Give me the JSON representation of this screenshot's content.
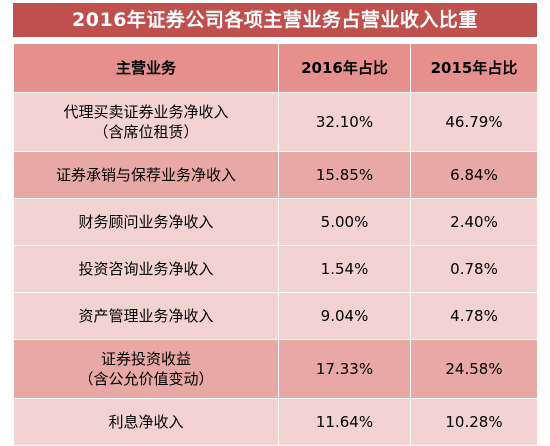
{
  "chart_data": {
    "type": "table",
    "title": "2016年证券公司各项主营业务占营业收入比重",
    "columns": [
      "主营业务",
      "2016年占比",
      "2015年占比"
    ],
    "rows": [
      {
        "name_lines": [
          "代理买卖证券业务净收入",
          "（含席位租赁）"
        ],
        "v2016": "32.10%",
        "v2015": "46.79%"
      },
      {
        "name_lines": [
          "证券承销与保荐业务净收入"
        ],
        "v2016": "15.85%",
        "v2015": "6.84%"
      },
      {
        "name_lines": [
          "财务顾问业务净收入"
        ],
        "v2016": "5.00%",
        "v2015": "2.40%"
      },
      {
        "name_lines": [
          "投资咨询业务净收入"
        ],
        "v2016": "1.54%",
        "v2015": "0.78%"
      },
      {
        "name_lines": [
          "资产管理业务净收入"
        ],
        "v2016": "9.04%",
        "v2015": "4.78%"
      },
      {
        "name_lines": [
          "证券投资收益",
          "（含公允价值变动）"
        ],
        "v2016": "17.33%",
        "v2015": "24.58%"
      },
      {
        "name_lines": [
          "利息净收入"
        ],
        "v2016": "11.64%",
        "v2015": "10.28%"
      }
    ]
  },
  "colors": {
    "title_bg": "#c0504d",
    "header_bg": "#e6908e",
    "row_light": "#f2d3d2",
    "row_dark": "#e8a8a6"
  }
}
